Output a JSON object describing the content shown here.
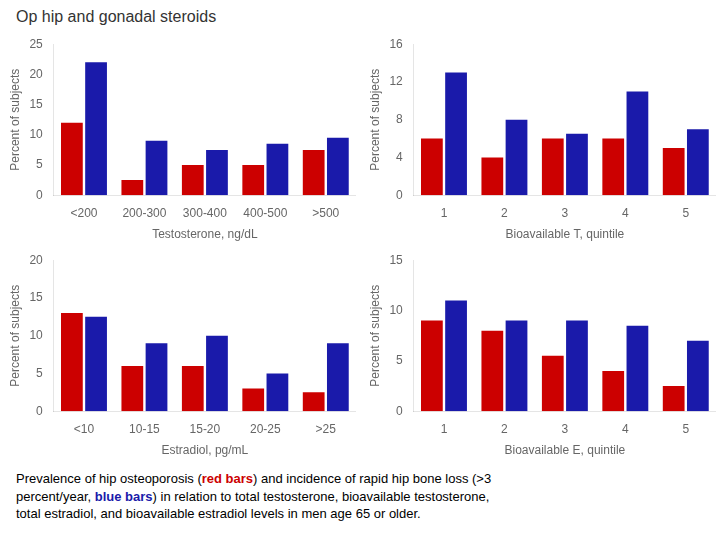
{
  "title": "Op hip and gonadal steroids",
  "annotations": [
    [
      {
        "text": "Prevalence of hip osteoporosis ("
      },
      {
        "text": "red bars",
        "color": "#cc0000"
      },
      {
        "text": ") and incidence of rapid hip bone loss (>3"
      }
    ],
    [
      {
        "text": "percent/year, "
      },
      {
        "text": "blue bars",
        "color": "#1a1aaa"
      },
      {
        "text": ") in relation to total testosterone, bioavailable testosterone,"
      }
    ],
    [
      {
        "text": "total estradiol, and bioavailable estradiol levels in men age 65 or older."
      }
    ]
  ],
  "chart_data": [
    {
      "type": "bar",
      "categories": [
        "<200",
        "200-300",
        "300-400",
        "400-500",
        ">500"
      ],
      "series": [
        {
          "color": "#cc0000",
          "values": [
            12,
            2.5,
            5,
            5,
            7.5
          ]
        },
        {
          "color": "#1a1aaa",
          "values": [
            22,
            9,
            7.5,
            8.5,
            9.5
          ]
        }
      ],
      "xlabel": "Testosterone, ng/dL",
      "ylabel": "Percent of subjects",
      "ylim": [
        0,
        25
      ],
      "yticks": [
        0,
        5,
        10,
        15,
        20,
        25
      ],
      "grid": false
    },
    {
      "type": "bar",
      "categories": [
        "1",
        "2",
        "3",
        "4",
        "5"
      ],
      "series": [
        {
          "color": "#cc0000",
          "values": [
            6,
            4,
            6,
            6,
            5
          ]
        },
        {
          "color": "#1a1aaa",
          "values": [
            13,
            8,
            6.5,
            11,
            7
          ]
        }
      ],
      "xlabel": "Bioavailable T, quintile",
      "ylabel": "Percent of subjects",
      "ylim": [
        0,
        16
      ],
      "yticks": [
        0,
        4,
        8,
        12,
        16
      ],
      "grid": false
    },
    {
      "type": "bar",
      "categories": [
        "<10",
        "10-15",
        "15-20",
        "20-25",
        ">25"
      ],
      "series": [
        {
          "color": "#cc0000",
          "values": [
            13,
            6,
            6,
            3,
            2.5
          ]
        },
        {
          "color": "#1a1aaa",
          "values": [
            12.5,
            9,
            10,
            5,
            9
          ]
        }
      ],
      "xlabel": "Estradiol, pg/mL",
      "ylabel": "Percent of subjects",
      "ylim": [
        0,
        20
      ],
      "yticks": [
        0,
        5,
        10,
        15,
        20
      ],
      "grid": false
    },
    {
      "type": "bar",
      "categories": [
        "1",
        "2",
        "3",
        "4",
        "5"
      ],
      "series": [
        {
          "color": "#cc0000",
          "values": [
            9,
            8,
            5.5,
            4,
            2.5
          ]
        },
        {
          "color": "#1a1aaa",
          "values": [
            11,
            9,
            9,
            8.5,
            7
          ]
        }
      ],
      "xlabel": "Bioavailable E, quintile",
      "ylabel": "Percent of subjects",
      "ylim": [
        0,
        15
      ],
      "yticks": [
        0,
        5,
        10,
        15
      ],
      "grid": false
    }
  ]
}
